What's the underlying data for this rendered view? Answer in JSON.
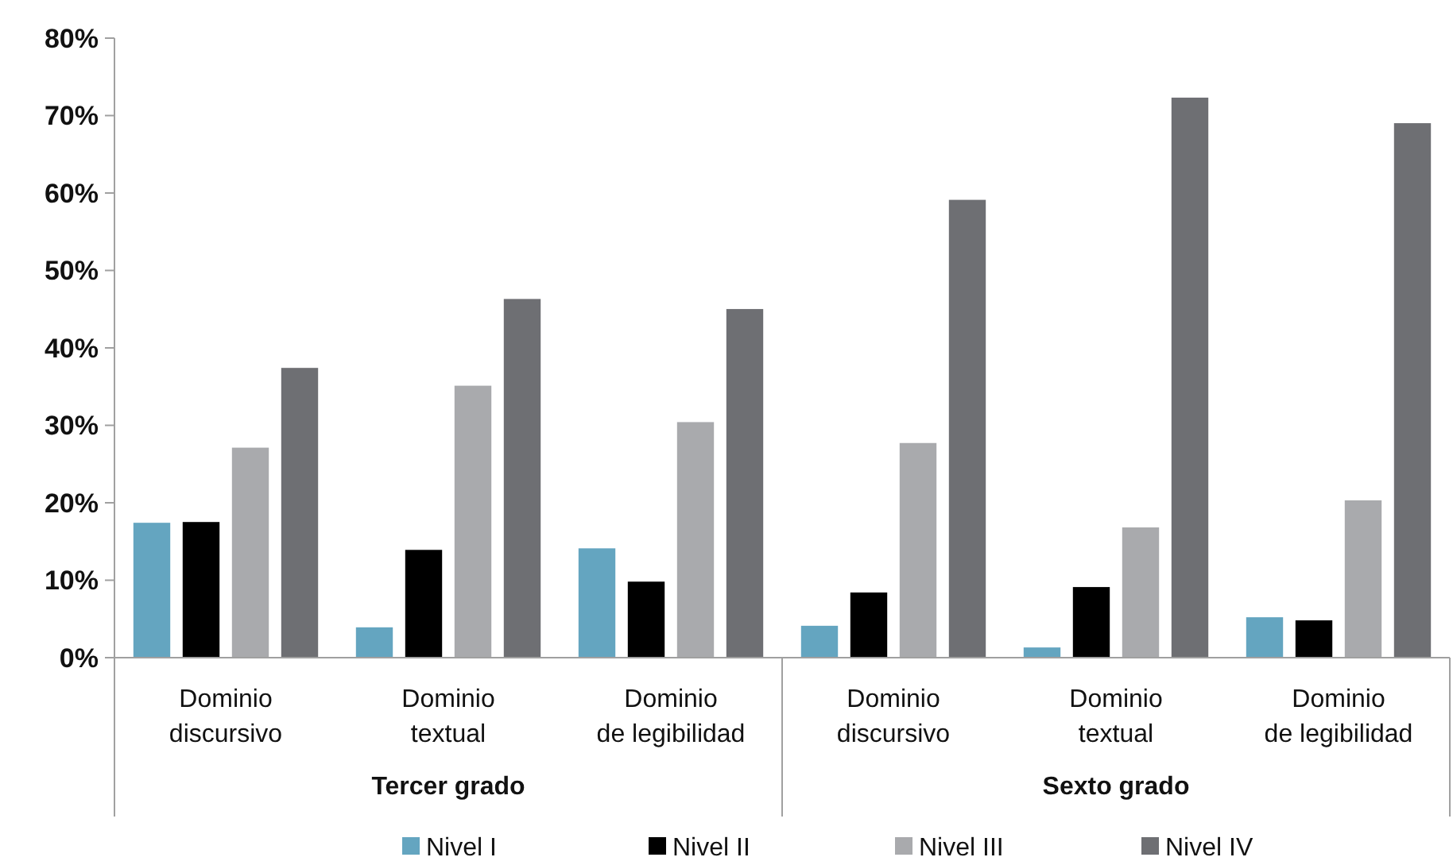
{
  "chart_data": {
    "type": "bar",
    "categories": [
      "Dominio\ndiscursivo",
      "Dominio\ntextual",
      "Dominio\nde legibilidad",
      "Dominio\ndiscursivo",
      "Dominio\ntextual",
      "Dominio\nde legibilidad"
    ],
    "series": [
      {
        "name": "Nivel I",
        "color": "#64a5c0",
        "values": [
          17.5,
          4.0,
          14.2,
          4.2,
          1.4,
          5.3
        ]
      },
      {
        "name": "Nivel II",
        "color": "#000000",
        "values": [
          17.6,
          14.0,
          9.9,
          8.5,
          9.2,
          4.9
        ]
      },
      {
        "name": "Nivel III",
        "color": "#a9aaad",
        "values": [
          27.2,
          35.2,
          30.5,
          27.8,
          16.9,
          20.4
        ]
      },
      {
        "name": "Nivel IV",
        "color": "#6e6f73",
        "values": [
          37.5,
          46.4,
          45.1,
          59.2,
          72.4,
          69.1
        ]
      }
    ],
    "annotations": [
      "Tercer grado",
      "Sexto grado"
    ],
    "ylim": [
      0,
      80
    ],
    "yticks": [
      {
        "value": 0,
        "label": "0%"
      },
      {
        "value": 10,
        "label": "10%"
      },
      {
        "value": 20,
        "label": "20%"
      },
      {
        "value": 30,
        "label": "30%"
      },
      {
        "value": 40,
        "label": "40%"
      },
      {
        "value": 50,
        "label": "50%"
      },
      {
        "value": 60,
        "label": "60%"
      },
      {
        "value": 70,
        "label": "70%"
      },
      {
        "value": 80,
        "label": "80%"
      }
    ],
    "grid": false,
    "legend": "bottom"
  }
}
